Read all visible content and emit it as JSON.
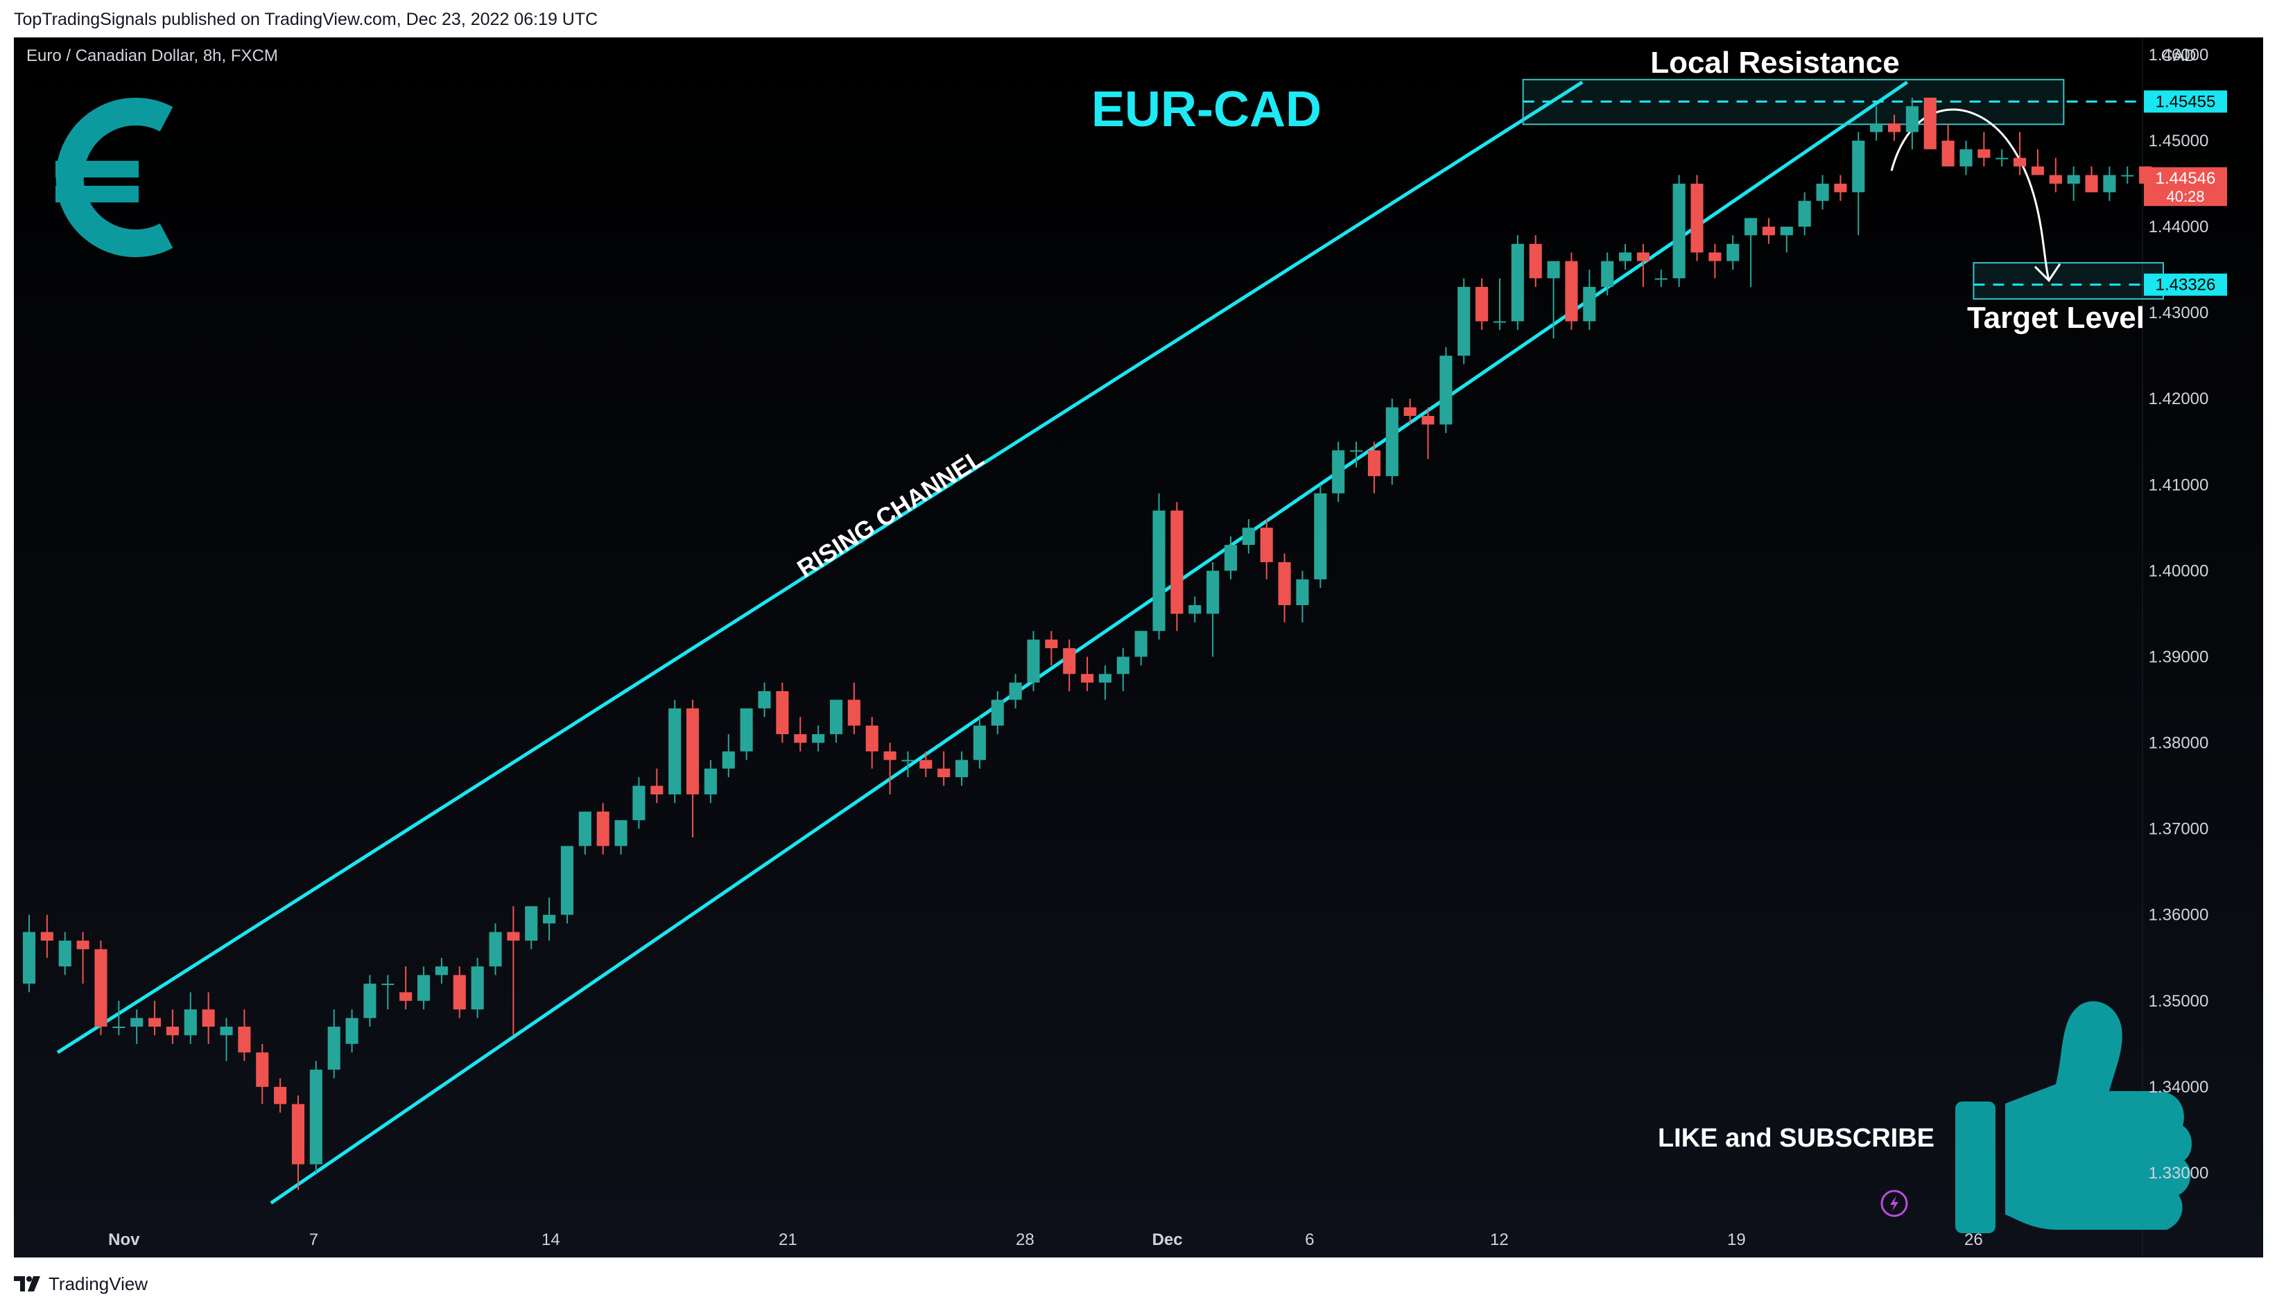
{
  "publish_line": "TopTradingSignals published on TradingView.com, Dec 23, 2022 06:19 UTC",
  "footer_brand": "TradingView",
  "colors": {
    "up": "#26a69a",
    "down": "#ef5350",
    "channel": "#19e6f0",
    "title": "#1ee9f5",
    "icon": "#0d9a9e",
    "zone_border": "#39c2cc"
  },
  "icons": {
    "currency": "euro-icon",
    "like": "thumbs-up-icon",
    "publish": "lightning-icon",
    "brand": "tradingview-logo-icon"
  },
  "chart_data": {
    "type": "candlestick",
    "symbol_label": "Euro / Canadian Dollar, 8h, FXCM",
    "title": "EUR-CAD",
    "price_unit": "CAD",
    "ylim": [
      1.325,
      1.462
    ],
    "y_ticks": [
      "1.46000",
      "1.45000",
      "1.44000",
      "1.43000",
      "1.42000",
      "1.41000",
      "1.40000",
      "1.39000",
      "1.38000",
      "1.37000",
      "1.36000",
      "1.35000",
      "1.34000",
      "1.33000"
    ],
    "x_ticks": [
      {
        "label": "Nov",
        "bar": 4
      },
      {
        "label": "7",
        "bar": 12
      },
      {
        "label": "14",
        "bar": 22
      },
      {
        "label": "21",
        "bar": 32
      },
      {
        "label": "28",
        "bar": 42
      },
      {
        "label": "Dec",
        "bar": 48
      },
      {
        "label": "6",
        "bar": 54
      },
      {
        "label": "12",
        "bar": 62
      },
      {
        "label": "19",
        "bar": 72
      },
      {
        "label": "26",
        "bar": 82
      }
    ],
    "bars_visible_span": 90,
    "candles": [
      {
        "o": 1.352,
        "h": 1.36,
        "l": 1.351,
        "c": 1.358
      },
      {
        "o": 1.358,
        "h": 1.36,
        "l": 1.355,
        "c": 1.357
      },
      {
        "o": 1.354,
        "h": 1.358,
        "l": 1.353,
        "c": 1.357
      },
      {
        "o": 1.357,
        "h": 1.358,
        "l": 1.352,
        "c": 1.356
      },
      {
        "o": 1.356,
        "h": 1.357,
        "l": 1.346,
        "c": 1.347
      },
      {
        "o": 1.347,
        "h": 1.35,
        "l": 1.346,
        "c": 1.347
      },
      {
        "o": 1.347,
        "h": 1.349,
        "l": 1.345,
        "c": 1.348
      },
      {
        "o": 1.348,
        "h": 1.35,
        "l": 1.346,
        "c": 1.347
      },
      {
        "o": 1.347,
        "h": 1.349,
        "l": 1.345,
        "c": 1.346
      },
      {
        "o": 1.346,
        "h": 1.351,
        "l": 1.345,
        "c": 1.349
      },
      {
        "o": 1.349,
        "h": 1.351,
        "l": 1.345,
        "c": 1.347
      },
      {
        "o": 1.346,
        "h": 1.348,
        "l": 1.343,
        "c": 1.347
      },
      {
        "o": 1.347,
        "h": 1.349,
        "l": 1.343,
        "c": 1.344
      },
      {
        "o": 1.344,
        "h": 1.345,
        "l": 1.338,
        "c": 1.34
      },
      {
        "o": 1.34,
        "h": 1.341,
        "l": 1.337,
        "c": 1.338
      },
      {
        "o": 1.338,
        "h": 1.339,
        "l": 1.328,
        "c": 1.331
      },
      {
        "o": 1.331,
        "h": 1.343,
        "l": 1.33,
        "c": 1.342
      },
      {
        "o": 1.342,
        "h": 1.349,
        "l": 1.341,
        "c": 1.347
      },
      {
        "o": 1.345,
        "h": 1.349,
        "l": 1.344,
        "c": 1.348
      },
      {
        "o": 1.348,
        "h": 1.353,
        "l": 1.347,
        "c": 1.352
      },
      {
        "o": 1.352,
        "h": 1.353,
        "l": 1.349,
        "c": 1.352
      },
      {
        "o": 1.351,
        "h": 1.354,
        "l": 1.349,
        "c": 1.35
      },
      {
        "o": 1.35,
        "h": 1.354,
        "l": 1.349,
        "c": 1.353
      },
      {
        "o": 1.353,
        "h": 1.355,
        "l": 1.352,
        "c": 1.354
      },
      {
        "o": 1.353,
        "h": 1.354,
        "l": 1.348,
        "c": 1.349
      },
      {
        "o": 1.349,
        "h": 1.355,
        "l": 1.348,
        "c": 1.354
      },
      {
        "o": 1.354,
        "h": 1.359,
        "l": 1.353,
        "c": 1.358
      },
      {
        "o": 1.358,
        "h": 1.361,
        "l": 1.346,
        "c": 1.357
      },
      {
        "o": 1.357,
        "h": 1.361,
        "l": 1.356,
        "c": 1.361
      },
      {
        "o": 1.359,
        "h": 1.362,
        "l": 1.357,
        "c": 1.36
      },
      {
        "o": 1.36,
        "h": 1.368,
        "l": 1.359,
        "c": 1.368
      },
      {
        "o": 1.368,
        "h": 1.372,
        "l": 1.367,
        "c": 1.372
      },
      {
        "o": 1.372,
        "h": 1.373,
        "l": 1.367,
        "c": 1.368
      },
      {
        "o": 1.368,
        "h": 1.371,
        "l": 1.367,
        "c": 1.371
      },
      {
        "o": 1.371,
        "h": 1.376,
        "l": 1.37,
        "c": 1.375
      },
      {
        "o": 1.375,
        "h": 1.377,
        "l": 1.373,
        "c": 1.374
      },
      {
        "o": 1.374,
        "h": 1.385,
        "l": 1.373,
        "c": 1.384
      },
      {
        "o": 1.384,
        "h": 1.385,
        "l": 1.369,
        "c": 1.374
      },
      {
        "o": 1.374,
        "h": 1.378,
        "l": 1.373,
        "c": 1.377
      },
      {
        "o": 1.377,
        "h": 1.381,
        "l": 1.376,
        "c": 1.379
      },
      {
        "o": 1.379,
        "h": 1.384,
        "l": 1.378,
        "c": 1.384
      },
      {
        "o": 1.384,
        "h": 1.387,
        "l": 1.383,
        "c": 1.386
      },
      {
        "o": 1.386,
        "h": 1.387,
        "l": 1.38,
        "c": 1.381
      },
      {
        "o": 1.381,
        "h": 1.383,
        "l": 1.379,
        "c": 1.38
      },
      {
        "o": 1.38,
        "h": 1.382,
        "l": 1.379,
        "c": 1.381
      },
      {
        "o": 1.381,
        "h": 1.385,
        "l": 1.38,
        "c": 1.385
      },
      {
        "o": 1.385,
        "h": 1.387,
        "l": 1.381,
        "c": 1.382
      },
      {
        "o": 1.382,
        "h": 1.383,
        "l": 1.377,
        "c": 1.379
      },
      {
        "o": 1.379,
        "h": 1.38,
        "l": 1.374,
        "c": 1.378
      },
      {
        "o": 1.378,
        "h": 1.379,
        "l": 1.376,
        "c": 1.378
      },
      {
        "o": 1.378,
        "h": 1.379,
        "l": 1.376,
        "c": 1.377
      },
      {
        "o": 1.377,
        "h": 1.379,
        "l": 1.375,
        "c": 1.376
      },
      {
        "o": 1.376,
        "h": 1.379,
        "l": 1.375,
        "c": 1.378
      },
      {
        "o": 1.378,
        "h": 1.383,
        "l": 1.377,
        "c": 1.382
      },
      {
        "o": 1.382,
        "h": 1.386,
        "l": 1.381,
        "c": 1.385
      },
      {
        "o": 1.385,
        "h": 1.388,
        "l": 1.384,
        "c": 1.387
      },
      {
        "o": 1.387,
        "h": 1.393,
        "l": 1.386,
        "c": 1.392
      },
      {
        "o": 1.392,
        "h": 1.393,
        "l": 1.389,
        "c": 1.391
      },
      {
        "o": 1.391,
        "h": 1.392,
        "l": 1.386,
        "c": 1.388
      },
      {
        "o": 1.388,
        "h": 1.39,
        "l": 1.386,
        "c": 1.387
      },
      {
        "o": 1.387,
        "h": 1.389,
        "l": 1.385,
        "c": 1.388
      },
      {
        "o": 1.388,
        "h": 1.391,
        "l": 1.386,
        "c": 1.39
      },
      {
        "o": 1.39,
        "h": 1.393,
        "l": 1.389,
        "c": 1.393
      },
      {
        "o": 1.393,
        "h": 1.409,
        "l": 1.392,
        "c": 1.407
      },
      {
        "o": 1.407,
        "h": 1.408,
        "l": 1.393,
        "c": 1.395
      },
      {
        "o": 1.395,
        "h": 1.397,
        "l": 1.394,
        "c": 1.396
      },
      {
        "o": 1.395,
        "h": 1.401,
        "l": 1.39,
        "c": 1.4
      },
      {
        "o": 1.4,
        "h": 1.404,
        "l": 1.399,
        "c": 1.403
      },
      {
        "o": 1.403,
        "h": 1.406,
        "l": 1.402,
        "c": 1.405
      },
      {
        "o": 1.405,
        "h": 1.406,
        "l": 1.399,
        "c": 1.401
      },
      {
        "o": 1.401,
        "h": 1.402,
        "l": 1.394,
        "c": 1.396
      },
      {
        "o": 1.396,
        "h": 1.4,
        "l": 1.394,
        "c": 1.399
      },
      {
        "o": 1.399,
        "h": 1.41,
        "l": 1.398,
        "c": 1.409
      },
      {
        "o": 1.409,
        "h": 1.415,
        "l": 1.408,
        "c": 1.414
      },
      {
        "o": 1.414,
        "h": 1.415,
        "l": 1.412,
        "c": 1.414
      },
      {
        "o": 1.414,
        "h": 1.415,
        "l": 1.409,
        "c": 1.411
      },
      {
        "o": 1.411,
        "h": 1.42,
        "l": 1.41,
        "c": 1.419
      },
      {
        "o": 1.419,
        "h": 1.42,
        "l": 1.417,
        "c": 1.418
      },
      {
        "o": 1.418,
        "h": 1.419,
        "l": 1.413,
        "c": 1.417
      },
      {
        "o": 1.417,
        "h": 1.426,
        "l": 1.416,
        "c": 1.425
      },
      {
        "o": 1.425,
        "h": 1.434,
        "l": 1.424,
        "c": 1.433
      },
      {
        "o": 1.433,
        "h": 1.434,
        "l": 1.428,
        "c": 1.429
      },
      {
        "o": 1.429,
        "h": 1.434,
        "l": 1.428,
        "c": 1.429
      },
      {
        "o": 1.429,
        "h": 1.439,
        "l": 1.428,
        "c": 1.438
      },
      {
        "o": 1.438,
        "h": 1.439,
        "l": 1.433,
        "c": 1.434
      },
      {
        "o": 1.434,
        "h": 1.435,
        "l": 1.427,
        "c": 1.436
      },
      {
        "o": 1.436,
        "h": 1.437,
        "l": 1.428,
        "c": 1.429
      },
      {
        "o": 1.429,
        "h": 1.435,
        "l": 1.428,
        "c": 1.433
      },
      {
        "o": 1.433,
        "h": 1.437,
        "l": 1.432,
        "c": 1.436
      }
    ],
    "candles_dec": [
      {
        "o": 1.436,
        "h": 1.438,
        "l": 1.435,
        "c": 1.437
      },
      {
        "o": 1.437,
        "h": 1.438,
        "l": 1.433,
        "c": 1.436
      },
      {
        "o": 1.434,
        "h": 1.435,
        "l": 1.433,
        "c": 1.434
      },
      {
        "o": 1.434,
        "h": 1.446,
        "l": 1.433,
        "c": 1.445
      },
      {
        "o": 1.445,
        "h": 1.446,
        "l": 1.436,
        "c": 1.437
      },
      {
        "o": 1.437,
        "h": 1.438,
        "l": 1.434,
        "c": 1.436
      },
      {
        "o": 1.436,
        "h": 1.439,
        "l": 1.435,
        "c": 1.438
      },
      {
        "o": 1.439,
        "h": 1.441,
        "l": 1.433,
        "c": 1.441
      },
      {
        "o": 1.44,
        "h": 1.441,
        "l": 1.438,
        "c": 1.439
      },
      {
        "o": 1.439,
        "h": 1.44,
        "l": 1.437,
        "c": 1.44
      },
      {
        "o": 1.44,
        "h": 1.444,
        "l": 1.439,
        "c": 1.443
      },
      {
        "o": 1.443,
        "h": 1.446,
        "l": 1.442,
        "c": 1.445
      },
      {
        "o": 1.445,
        "h": 1.446,
        "l": 1.443,
        "c": 1.444
      },
      {
        "o": 1.444,
        "h": 1.451,
        "l": 1.439,
        "c": 1.45
      },
      {
        "o": 1.451,
        "h": 1.454,
        "l": 1.45,
        "c": 1.452
      },
      {
        "o": 1.452,
        "h": 1.453,
        "l": 1.45,
        "c": 1.451
      },
      {
        "o": 1.451,
        "h": 1.455,
        "l": 1.449,
        "c": 1.454
      },
      {
        "o": 1.455,
        "h": 1.455,
        "l": 1.449,
        "c": 1.449
      },
      {
        "o": 1.45,
        "h": 1.452,
        "l": 1.447,
        "c": 1.447
      },
      {
        "o": 1.447,
        "h": 1.45,
        "l": 1.446,
        "c": 1.449
      },
      {
        "o": 1.449,
        "h": 1.451,
        "l": 1.447,
        "c": 1.448
      },
      {
        "o": 1.448,
        "h": 1.449,
        "l": 1.447,
        "c": 1.448
      },
      {
        "o": 1.448,
        "h": 1.451,
        "l": 1.446,
        "c": 1.447
      },
      {
        "o": 1.447,
        "h": 1.449,
        "l": 1.446,
        "c": 1.446
      },
      {
        "o": 1.446,
        "h": 1.448,
        "l": 1.444,
        "c": 1.445
      },
      {
        "o": 1.445,
        "h": 1.447,
        "l": 1.443,
        "c": 1.446
      },
      {
        "o": 1.446,
        "h": 1.447,
        "l": 1.444,
        "c": 1.444
      },
      {
        "o": 1.444,
        "h": 1.447,
        "l": 1.443,
        "c": 1.446
      },
      {
        "o": 1.446,
        "h": 1.447,
        "l": 1.445,
        "c": 1.446
      },
      {
        "o": 1.447,
        "h": 1.447,
        "l": 1.445,
        "c": 1.445
      }
    ],
    "channel": {
      "label": "RISING CHANNEL",
      "upper": {
        "x1": 1.2,
        "y1": 1.344,
        "x2": 65.5,
        "y2": 1.4568
      },
      "lower": {
        "x1": 10.2,
        "y1": 1.3265,
        "x2": 79.2,
        "y2": 1.4568
      }
    },
    "resistance_zone": {
      "label": "Local Resistance",
      "top": 1.4571,
      "bottom": 1.4519,
      "x_from": 63.0,
      "x_to": 85.8,
      "dashed_level": 1.45455
    },
    "target_zone": {
      "label": "Target Level",
      "top": 1.4358,
      "bottom": 1.4316,
      "x_from": 82.0,
      "x_to": 90.0,
      "dashed_level": 1.43326
    },
    "price_labels": [
      {
        "value": "1.45455",
        "price": 1.45455,
        "color": "#19e6f0"
      },
      {
        "value": "1.43326",
        "price": 1.43326,
        "color": "#19e6f0"
      }
    ],
    "last_price": {
      "value": "1.44546",
      "price": 1.44546,
      "countdown": "40:28"
    },
    "annotation_cta": "LIKE and SUBSCRIBE"
  }
}
